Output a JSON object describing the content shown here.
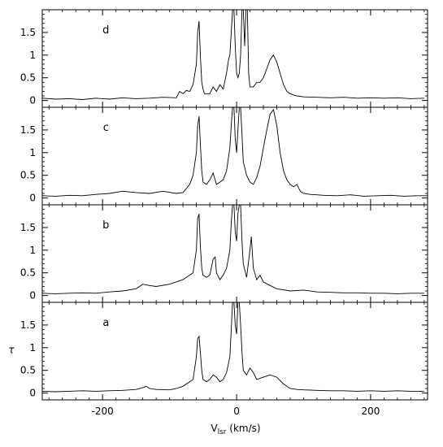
{
  "chart_data": {
    "type": "line",
    "title": "",
    "xlabel": "V",
    "xlabel_sub": "lsr",
    "xlabel_unit": " (km/s)",
    "ylabel": "τ",
    "xlim": [
      -290,
      285
    ],
    "ylim": [
      -0.15,
      2.0
    ],
    "x_ticks": [
      -200,
      0,
      200
    ],
    "x_tick_labels": [
      "-200",
      "0",
      "200"
    ],
    "y_ticks": [
      0,
      0.5,
      1,
      1.5
    ],
    "y_tick_labels": [
      "0",
      "0.5",
      "1",
      "1.5"
    ],
    "grid": false,
    "line_color": "#000000",
    "panels": [
      {
        "label": "d",
        "x": [
          -290,
          -270,
          -250,
          -230,
          -210,
          -190,
          -170,
          -150,
          -130,
          -110,
          -90,
          -85,
          -80,
          -75,
          -70,
          -65,
          -60,
          -58,
          -56,
          -54,
          -52,
          -50,
          -48,
          -45,
          -40,
          -35,
          -30,
          -25,
          -20,
          -15,
          -12,
          -10,
          -8,
          -6,
          -4,
          -2,
          0,
          2,
          4,
          6,
          8,
          10,
          12,
          14,
          16,
          18,
          20,
          25,
          30,
          35,
          40,
          45,
          50,
          55,
          60,
          65,
          70,
          75,
          80,
          85,
          90,
          100,
          120,
          140,
          160,
          180,
          200,
          220,
          240,
          260,
          280
        ],
        "values": [
          0.05,
          0.03,
          0.04,
          0.02,
          0.05,
          0.03,
          0.06,
          0.04,
          0.05,
          0.07,
          0.06,
          0.2,
          0.15,
          0.22,
          0.2,
          0.35,
          0.8,
          1.5,
          1.75,
          1.0,
          0.4,
          0.25,
          0.15,
          0.15,
          0.15,
          0.3,
          0.2,
          0.35,
          0.25,
          0.6,
          0.9,
          1.0,
          1.5,
          2.0,
          2.0,
          1.2,
          0.6,
          0.5,
          0.6,
          1.0,
          2.0,
          2.0,
          1.2,
          2.0,
          2.0,
          0.6,
          0.3,
          0.3,
          0.4,
          0.4,
          0.5,
          0.7,
          0.9,
          1.0,
          0.85,
          0.6,
          0.35,
          0.2,
          0.15,
          0.12,
          0.1,
          0.08,
          0.07,
          0.06,
          0.07,
          0.05,
          0.06,
          0.05,
          0.06,
          0.04,
          0.05
        ]
      },
      {
        "label": "c",
        "x": [
          -290,
          -270,
          -250,
          -230,
          -210,
          -190,
          -170,
          -150,
          -130,
          -110,
          -90,
          -80,
          -70,
          -65,
          -60,
          -58,
          -56,
          -54,
          -52,
          -50,
          -45,
          -40,
          -35,
          -30,
          -25,
          -20,
          -15,
          -10,
          -8,
          -6,
          -4,
          -2,
          0,
          2,
          4,
          6,
          8,
          10,
          15,
          20,
          25,
          30,
          35,
          40,
          45,
          50,
          55,
          60,
          65,
          70,
          75,
          80,
          85,
          90,
          95,
          100,
          110,
          130,
          150,
          170,
          190,
          210,
          230,
          250,
          270,
          285
        ],
        "values": [
          0.05,
          0.04,
          0.06,
          0.05,
          0.08,
          0.1,
          0.15,
          0.12,
          0.1,
          0.15,
          0.1,
          0.12,
          0.3,
          0.5,
          1.0,
          1.6,
          1.8,
          1.2,
          0.6,
          0.35,
          0.3,
          0.4,
          0.55,
          0.3,
          0.35,
          0.4,
          0.6,
          1.1,
          1.6,
          2.0,
          2.0,
          1.3,
          1.0,
          1.5,
          2.0,
          2.0,
          1.4,
          0.8,
          0.5,
          0.35,
          0.3,
          0.45,
          0.7,
          1.1,
          1.5,
          1.85,
          1.95,
          1.6,
          1.0,
          0.6,
          0.4,
          0.3,
          0.25,
          0.3,
          0.15,
          0.1,
          0.08,
          0.06,
          0.05,
          0.07,
          0.04,
          0.05,
          0.06,
          0.04,
          0.05,
          0.05
        ]
      },
      {
        "label": "b",
        "x": [
          -290,
          -270,
          -250,
          -230,
          -210,
          -190,
          -170,
          -150,
          -140,
          -130,
          -120,
          -100,
          -80,
          -70,
          -65,
          -60,
          -58,
          -56,
          -54,
          -52,
          -50,
          -45,
          -40,
          -35,
          -32,
          -30,
          -25,
          -20,
          -15,
          -10,
          -8,
          -6,
          -4,
          -2,
          0,
          2,
          4,
          6,
          8,
          10,
          15,
          20,
          22,
          25,
          30,
          35,
          40,
          50,
          60,
          80,
          100,
          120,
          140,
          160,
          180,
          200,
          220,
          240,
          260,
          280
        ],
        "values": [
          0.05,
          0.04,
          0.05,
          0.06,
          0.05,
          0.08,
          0.1,
          0.15,
          0.25,
          0.22,
          0.2,
          0.25,
          0.35,
          0.45,
          0.5,
          1.0,
          1.7,
          1.8,
          1.1,
          0.6,
          0.45,
          0.4,
          0.45,
          0.8,
          0.85,
          0.5,
          0.35,
          0.45,
          0.6,
          1.0,
          1.6,
          2.0,
          2.0,
          1.4,
          1.2,
          1.8,
          2.0,
          2.0,
          1.2,
          0.7,
          0.4,
          1.0,
          1.3,
          0.6,
          0.35,
          0.45,
          0.3,
          0.22,
          0.15,
          0.1,
          0.12,
          0.08,
          0.07,
          0.06,
          0.06,
          0.05,
          0.05,
          0.04,
          0.05,
          0.05
        ]
      },
      {
        "label": "a",
        "x": [
          -290,
          -270,
          -250,
          -230,
          -210,
          -190,
          -170,
          -150,
          -140,
          -135,
          -130,
          -120,
          -100,
          -90,
          -80,
          -75,
          -70,
          -65,
          -60,
          -58,
          -56,
          -54,
          -52,
          -50,
          -45,
          -40,
          -35,
          -30,
          -25,
          -20,
          -15,
          -10,
          -8,
          -6,
          -4,
          -2,
          0,
          2,
          4,
          6,
          8,
          10,
          15,
          20,
          25,
          30,
          40,
          50,
          60,
          70,
          80,
          90,
          100,
          120,
          140,
          160,
          180,
          200,
          220,
          240,
          260,
          280
        ],
        "values": [
          0.04,
          0.03,
          0.04,
          0.05,
          0.04,
          0.05,
          0.06,
          0.08,
          0.12,
          0.15,
          0.1,
          0.08,
          0.07,
          0.1,
          0.15,
          0.2,
          0.25,
          0.3,
          0.8,
          1.2,
          1.25,
          0.9,
          0.5,
          0.3,
          0.25,
          0.3,
          0.4,
          0.35,
          0.25,
          0.3,
          0.45,
          0.8,
          1.4,
          2.0,
          2.0,
          1.5,
          1.3,
          2.0,
          2.0,
          1.5,
          0.9,
          0.5,
          0.4,
          0.55,
          0.45,
          0.3,
          0.35,
          0.4,
          0.35,
          0.2,
          0.1,
          0.08,
          0.07,
          0.06,
          0.05,
          0.05,
          0.04,
          0.05,
          0.04,
          0.05,
          0.04,
          0.04
        ]
      }
    ]
  }
}
